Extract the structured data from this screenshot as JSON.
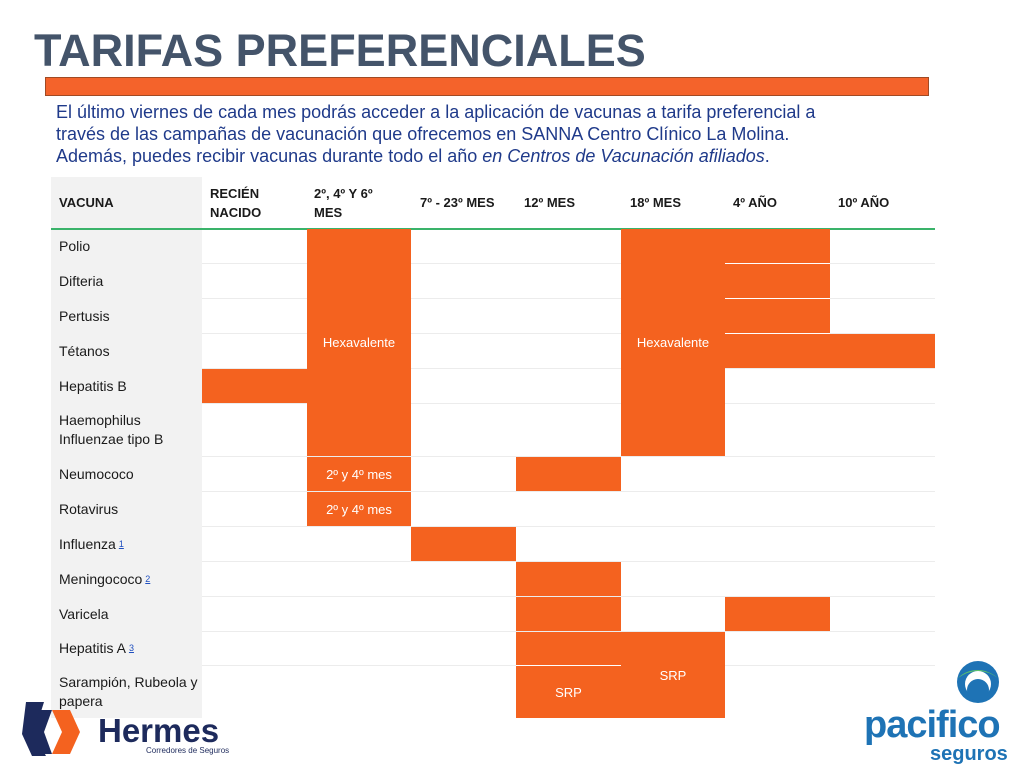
{
  "title": "TARIFAS PREFERENCIALES",
  "intro": {
    "line1": "El último viernes de cada mes podrás acceder a la aplicación de vacunas a tarifa preferencial a",
    "line2": "través de las campañas de vacunación que ofrecemos en SANNA Centro Clínico La Molina.",
    "line3_plain": "Además, puedes recibir vacunas durante todo el año ",
    "line3_italic": "en Centros de Vacunación afiliados",
    "line3_end": "."
  },
  "table": {
    "headers": [
      "VACUNA",
      "RECIÉN NACIDO",
      "2º, 4º Y 6º MES",
      "7º - 23º MES",
      "12º MES",
      "18º MES",
      "4º AÑO",
      "10º AÑO"
    ],
    "rows": [
      {
        "label": "Polio",
        "note": ""
      },
      {
        "label": "Difteria",
        "note": ""
      },
      {
        "label": "Pertusis",
        "note": ""
      },
      {
        "label": "Tétanos",
        "note": ""
      },
      {
        "label": "Hepatitis B",
        "note": ""
      },
      {
        "label": "Haemophilus Influenzae tipo B",
        "note": ""
      },
      {
        "label": "Neumococo",
        "note": ""
      },
      {
        "label": "Rotavirus",
        "note": ""
      },
      {
        "label": "Influenza",
        "note": "1"
      },
      {
        "label": "Meningococo",
        "note": "2"
      },
      {
        "label": "Varicela",
        "note": ""
      },
      {
        "label": "Hepatitis A",
        "note": "3"
      },
      {
        "label": "Sarampión, Rubeola y papera",
        "note": ""
      }
    ],
    "cells": {
      "hexa1": "Hexavalente",
      "hexa2": "Hexavalente",
      "neumo": "2º y 4º mes",
      "rota": "2º y 4º mes",
      "srp1": "SRP",
      "srp2": "SRP"
    }
  },
  "logos": {
    "hermes_name": "Hermes",
    "hermes_sub": "Corredores de Seguros",
    "pacifico_name": "pacifico",
    "pacifico_sub": "seguros"
  },
  "colors": {
    "accent": "#f4621f",
    "title": "#44546a",
    "intro_text": "#1f3a8a",
    "rule": "#3ab36a",
    "hermes_blue": "#1d2a5c",
    "pacifico_blue": "#1e73b5"
  }
}
